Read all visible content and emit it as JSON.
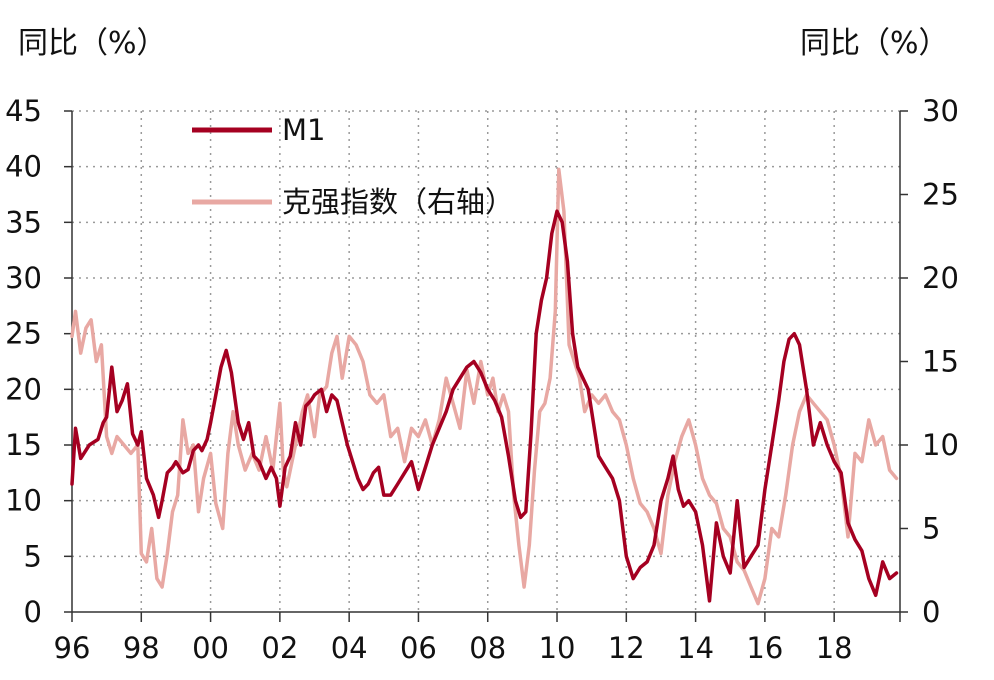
{
  "chart_data": {
    "type": "line",
    "title": "",
    "ylabel_left": "同比（%）",
    "ylabel_right": "同比（%）",
    "ylim_left": [
      0,
      45
    ],
    "ylim_right": [
      0,
      30
    ],
    "y_ticks_left": [
      "0",
      "5",
      "10",
      "15",
      "20",
      "25",
      "30",
      "35",
      "40",
      "45"
    ],
    "y_ticks_right": [
      "0",
      "5",
      "10",
      "15",
      "20",
      "25",
      "30"
    ],
    "x_ticks": [
      "96",
      "98",
      "00",
      "02",
      "04",
      "06",
      "08",
      "10",
      "12",
      "14",
      "16",
      "18"
    ],
    "xlim": [
      1996.0,
      2019.9
    ],
    "grid": true,
    "legend_position": "top-left",
    "series": [
      {
        "name": "M1",
        "axis": "left",
        "color": "#a50021",
        "x": [
          1996.0,
          1996.1,
          1996.25,
          1996.5,
          1996.75,
          1996.9,
          1997.0,
          1997.15,
          1997.3,
          1997.45,
          1997.6,
          1997.75,
          1997.9,
          1998.0,
          1998.15,
          1998.35,
          1998.5,
          1998.6,
          1998.75,
          1998.9,
          1999.0,
          1999.2,
          1999.35,
          1999.5,
          1999.65,
          1999.75,
          1999.9,
          2000.0,
          2000.15,
          2000.3,
          2000.45,
          2000.6,
          2000.8,
          2000.95,
          2001.1,
          2001.25,
          2001.4,
          2001.6,
          2001.75,
          2001.9,
          2002.0,
          2002.15,
          2002.3,
          2002.45,
          2002.6,
          2002.75,
          2002.9,
          2003.0,
          2003.2,
          2003.35,
          2003.5,
          2003.65,
          2003.8,
          2003.95,
          2004.1,
          2004.25,
          2004.4,
          2004.55,
          2004.7,
          2004.85,
          2005.0,
          2005.2,
          2005.4,
          2005.6,
          2005.8,
          2006.0,
          2006.2,
          2006.4,
          2006.6,
          2006.8,
          2007.0,
          2007.2,
          2007.4,
          2007.6,
          2007.8,
          2008.0,
          2008.2,
          2008.4,
          2008.6,
          2008.8,
          2008.95,
          2009.1,
          2009.25,
          2009.4,
          2009.55,
          2009.7,
          2009.85,
          2010.0,
          2010.15,
          2010.3,
          2010.45,
          2010.6,
          2010.75,
          2010.9,
          2011.0,
          2011.2,
          2011.4,
          2011.6,
          2011.8,
          2012.0,
          2012.2,
          2012.4,
          2012.6,
          2012.8,
          2013.0,
          2013.2,
          2013.35,
          2013.5,
          2013.65,
          2013.8,
          2014.0,
          2014.2,
          2014.4,
          2014.6,
          2014.8,
          2015.0,
          2015.2,
          2015.4,
          2015.6,
          2015.8,
          2016.0,
          2016.2,
          2016.4,
          2016.55,
          2016.7,
          2016.85,
          2017.0,
          2017.2,
          2017.4,
          2017.6,
          2017.8,
          2018.0,
          2018.2,
          2018.4,
          2018.6,
          2018.8,
          2019.0,
          2019.2,
          2019.4,
          2019.6,
          2019.8
        ],
        "values": [
          11.5,
          16.5,
          13.8,
          15.0,
          15.5,
          17.0,
          17.5,
          22.0,
          18.0,
          19.0,
          20.5,
          16.0,
          15.0,
          16.2,
          12.0,
          10.5,
          8.5,
          10.0,
          12.5,
          13.0,
          13.5,
          12.5,
          12.8,
          14.5,
          15.0,
          14.5,
          15.5,
          17.0,
          19.5,
          22.0,
          23.5,
          21.5,
          17.0,
          15.5,
          17.0,
          14.0,
          13.5,
          12.0,
          13.0,
          12.0,
          9.5,
          13.0,
          14.0,
          17.0,
          15.0,
          18.5,
          19.0,
          19.5,
          20.0,
          18.0,
          19.5,
          19.0,
          17.0,
          15.0,
          13.5,
          12.0,
          11.0,
          11.5,
          12.5,
          13.0,
          10.5,
          10.5,
          11.5,
          12.5,
          13.5,
          11.0,
          13.0,
          15.0,
          16.5,
          18.0,
          20.0,
          21.0,
          22.0,
          22.5,
          21.5,
          20.0,
          19.0,
          17.5,
          14.0,
          10.0,
          8.5,
          9.0,
          16.0,
          25.0,
          28.0,
          30.0,
          34.0,
          36.0,
          35.0,
          31.5,
          25.0,
          22.0,
          21.0,
          20.0,
          18.0,
          14.0,
          13.0,
          12.0,
          10.0,
          5.0,
          3.0,
          4.0,
          4.5,
          6.0,
          10.0,
          12.0,
          14.0,
          11.0,
          9.5,
          10.0,
          9.0,
          6.0,
          1.0,
          8.0,
          5.0,
          3.5,
          10.0,
          4.0,
          5.0,
          6.0,
          11.0,
          15.0,
          19.0,
          22.5,
          24.5,
          25.0,
          24.0,
          20.0,
          15.0,
          17.0,
          15.0,
          13.5,
          12.5,
          8.0,
          6.5,
          5.5,
          3.0,
          1.5,
          4.5,
          3.0,
          3.5
        ]
      },
      {
        "name": "克强指数（右轴）",
        "axis": "right",
        "color": "#e8a8a3",
        "x": [
          1996.0,
          1996.1,
          1996.25,
          1996.4,
          1996.55,
          1996.7,
          1996.85,
          1997.0,
          1997.15,
          1997.3,
          1997.5,
          1997.7,
          1997.9,
          1998.0,
          1998.15,
          1998.3,
          1998.45,
          1998.6,
          1998.75,
          1998.9,
          1999.05,
          1999.2,
          1999.35,
          1999.5,
          1999.65,
          1999.8,
          2000.0,
          2000.15,
          2000.35,
          2000.5,
          2000.65,
          2000.8,
          2001.0,
          2001.2,
          2001.4,
          2001.6,
          2001.8,
          2002.0,
          2002.1,
          2002.2,
          2002.35,
          2002.5,
          2002.65,
          2002.8,
          2003.0,
          2003.15,
          2003.35,
          2003.5,
          2003.65,
          2003.8,
          2004.0,
          2004.2,
          2004.4,
          2004.6,
          2004.8,
          2005.0,
          2005.2,
          2005.4,
          2005.6,
          2005.8,
          2006.0,
          2006.2,
          2006.4,
          2006.6,
          2006.8,
          2007.0,
          2007.2,
          2007.4,
          2007.6,
          2007.8,
          2008.0,
          2008.15,
          2008.3,
          2008.45,
          2008.6,
          2008.75,
          2008.9,
          2009.05,
          2009.2,
          2009.35,
          2009.5,
          2009.65,
          2009.8,
          2009.95,
          2010.05,
          2010.2,
          2010.35,
          2010.5,
          2010.65,
          2010.8,
          2011.0,
          2011.2,
          2011.4,
          2011.6,
          2011.8,
          2012.0,
          2012.2,
          2012.4,
          2012.6,
          2012.8,
          2013.0,
          2013.2,
          2013.4,
          2013.6,
          2013.8,
          2014.0,
          2014.2,
          2014.4,
          2014.6,
          2014.8,
          2015.0,
          2015.2,
          2015.4,
          2015.6,
          2015.8,
          2016.0,
          2016.2,
          2016.4,
          2016.6,
          2016.8,
          2017.0,
          2017.2,
          2017.4,
          2017.6,
          2017.8,
          2018.0,
          2018.2,
          2018.4,
          2018.6,
          2018.8,
          2019.0,
          2019.2,
          2019.4,
          2019.6,
          2019.8
        ],
        "values": [
          16.5,
          18.0,
          15.5,
          17.0,
          17.5,
          15.0,
          16.0,
          10.5,
          9.5,
          10.5,
          10.0,
          9.5,
          10.0,
          3.5,
          3.0,
          5.0,
          2.0,
          1.5,
          3.5,
          6.0,
          7.0,
          11.5,
          9.5,
          10.0,
          6.0,
          8.0,
          9.5,
          6.5,
          5.0,
          9.5,
          12.0,
          10.0,
          8.5,
          9.5,
          8.5,
          10.5,
          8.5,
          12.5,
          8.5,
          7.5,
          9.0,
          10.5,
          12.0,
          13.0,
          10.5,
          13.0,
          13.5,
          15.5,
          16.5,
          14.0,
          16.5,
          16.0,
          15.0,
          13.0,
          12.5,
          13.0,
          10.5,
          11.0,
          9.0,
          11.0,
          10.5,
          11.5,
          10.0,
          11.5,
          14.0,
          12.5,
          11.0,
          14.5,
          12.5,
          15.0,
          13.0,
          14.0,
          12.0,
          13.0,
          12.0,
          7.0,
          4.0,
          1.5,
          4.0,
          8.5,
          12.0,
          12.5,
          14.0,
          18.0,
          26.5,
          24.0,
          16.0,
          15.0,
          14.0,
          12.0,
          13.0,
          12.5,
          13.0,
          12.0,
          11.5,
          10.0,
          8.0,
          6.5,
          6.0,
          5.0,
          3.5,
          7.0,
          9.0,
          10.5,
          11.5,
          10.0,
          8.0,
          7.0,
          6.5,
          5.0,
          4.5,
          3.0,
          2.5,
          1.5,
          0.5,
          2.0,
          5.0,
          4.5,
          7.0,
          10.0,
          12.0,
          13.0,
          12.5,
          12.0,
          11.5,
          10.0,
          8.0,
          4.5,
          9.5,
          9.0,
          11.5,
          10.0,
          10.5,
          8.5,
          8.0
        ],
        "note_axis": "right axis 0–30"
      }
    ]
  }
}
